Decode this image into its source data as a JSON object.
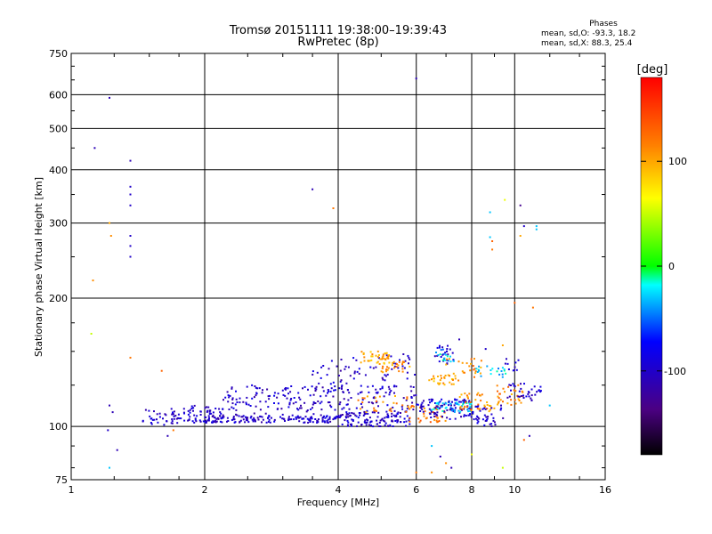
{
  "chart_data": {
    "type": "scatter",
    "title": "Tromsø 20151111 19:38:00–19:39:43",
    "subtitle": "RwPretec (8p)",
    "xlabel": "Frequency [MHz]",
    "ylabel": "Stationary phase Virtual Height [km]",
    "x_scale": "log",
    "y_scale": "log",
    "xlim": [
      1,
      16
    ],
    "ylim": [
      75,
      750
    ],
    "x_ticks": [
      1,
      2,
      4,
      6,
      8,
      10,
      16
    ],
    "y_ticks": [
      75,
      100,
      200,
      300,
      400,
      500,
      600,
      750
    ],
    "grid": true,
    "phase_stats": {
      "heading": "Phases",
      "line_o": "mean, sd,O: -93.3, 18.2",
      "line_x": "mean, sd,X: 88.3, 25.4"
    },
    "colorbar": {
      "label": "[deg]",
      "range": [
        -180,
        180
      ],
      "ticks": [
        100,
        0,
        -100
      ]
    },
    "points": [
      [
        1.13,
        450,
        -110
      ],
      [
        1.22,
        590,
        -110
      ],
      [
        1.36,
        420,
        -110
      ],
      [
        1.36,
        365,
        -100
      ],
      [
        1.36,
        350,
        -100
      ],
      [
        1.36,
        330,
        -100
      ],
      [
        1.36,
        280,
        -100
      ],
      [
        1.36,
        265,
        -100
      ],
      [
        1.36,
        250,
        -100
      ],
      [
        1.22,
        300,
        100
      ],
      [
        1.23,
        280,
        110
      ],
      [
        1.12,
        220,
        110
      ],
      [
        1.11,
        165,
        50
      ],
      [
        1.36,
        145,
        120
      ],
      [
        1.22,
        112,
        -110
      ],
      [
        1.24,
        108,
        -110
      ],
      [
        1.21,
        98,
        -100
      ],
      [
        1.27,
        88,
        -110
      ],
      [
        1.22,
        80,
        -30
      ],
      [
        1.6,
        135,
        130
      ],
      [
        1.7,
        98,
        120
      ],
      [
        1.65,
        95,
        -110
      ],
      [
        3.5,
        360,
        -110
      ],
      [
        3.9,
        325,
        120
      ],
      [
        6.0,
        655,
        -110
      ],
      [
        8.8,
        318,
        -30
      ],
      [
        8.8,
        278,
        -30
      ],
      [
        8.9,
        272,
        130
      ],
      [
        8.9,
        260,
        120
      ],
      [
        9.5,
        340,
        60
      ],
      [
        10.3,
        330,
        -130
      ],
      [
        10.5,
        295,
        -100
      ],
      [
        11.2,
        295,
        -30
      ],
      [
        11.2,
        290,
        -30
      ],
      [
        10.3,
        280,
        100
      ],
      [
        10.0,
        195,
        130
      ],
      [
        11.0,
        190,
        120
      ],
      [
        8.6,
        152,
        -100
      ],
      [
        7.5,
        160,
        -110
      ],
      [
        9.4,
        155,
        100
      ],
      [
        10.5,
        93,
        130
      ],
      [
        10.8,
        95,
        -110
      ],
      [
        12.0,
        112,
        -30
      ],
      [
        9.4,
        80,
        50
      ],
      [
        6.0,
        78,
        120
      ],
      [
        6.5,
        78,
        110
      ],
      [
        7.2,
        80,
        -110
      ],
      [
        7.0,
        82,
        110
      ],
      [
        6.8,
        85,
        -110
      ],
      [
        6.5,
        90,
        -30
      ],
      [
        8.0,
        86,
        60
      ]
    ],
    "clusters": [
      {
        "f": [
          1.45,
          1.75
        ],
        "h": [
          100,
          110
        ],
        "phase": -100,
        "n": 40
      },
      {
        "f": [
          1.75,
          2.2
        ],
        "h": [
          102,
          112
        ],
        "phase": -100,
        "n": 60
      },
      {
        "f": [
          2.0,
          4.0
        ],
        "h": [
          102,
          106
        ],
        "phase": -100,
        "n": 150
      },
      {
        "f": [
          2.2,
          4.0
        ],
        "h": [
          106,
          125
        ],
        "phase": -100,
        "n": 130
      },
      {
        "f": [
          3.5,
          4.2
        ],
        "h": [
          120,
          145
        ],
        "phase": -100,
        "n": 30
      },
      {
        "f": [
          4.0,
          5.8
        ],
        "h": [
          100,
          108
        ],
        "phase": -100,
        "n": 120
      },
      {
        "f": [
          4.0,
          6.0
        ],
        "h": [
          108,
          125
        ],
        "phase": -100,
        "n": 80
      },
      {
        "f": [
          4.2,
          6.0
        ],
        "h": [
          128,
          148
        ],
        "phase": -100,
        "n": 40
      },
      {
        "f": [
          4.5,
          5.3
        ],
        "h": [
          140,
          150
        ],
        "phase": 100,
        "n": 40
      },
      {
        "f": [
          5.0,
          5.8
        ],
        "h": [
          134,
          142
        ],
        "phase": 110,
        "n": 25
      },
      {
        "f": [
          4.4,
          5.8
        ],
        "h": [
          108,
          118
        ],
        "phase": 110,
        "n": 25
      },
      {
        "f": [
          5.7,
          7.0
        ],
        "h": [
          102,
          112
        ],
        "phase": 120,
        "n": 40
      },
      {
        "f": [
          6.0,
          8.0
        ],
        "h": [
          104,
          116
        ],
        "phase": -100,
        "n": 100
      },
      {
        "f": [
          6.5,
          8.0
        ],
        "h": [
          108,
          114
        ],
        "phase": -30,
        "n": 40
      },
      {
        "f": [
          6.6,
          7.3
        ],
        "h": [
          140,
          155
        ],
        "phase": -100,
        "n": 25
      },
      {
        "f": [
          6.6,
          7.4
        ],
        "h": [
          142,
          152
        ],
        "phase": -30,
        "n": 15
      },
      {
        "f": [
          6.4,
          7.5
        ],
        "h": [
          125,
          132
        ],
        "phase": 100,
        "n": 30
      },
      {
        "f": [
          7.0,
          8.5
        ],
        "h": [
          130,
          145
        ],
        "phase": 110,
        "n": 25
      },
      {
        "f": [
          7.5,
          9.0
        ],
        "h": [
          108,
          120
        ],
        "phase": 110,
        "n": 40
      },
      {
        "f": [
          8.0,
          9.5
        ],
        "h": [
          100,
          112
        ],
        "phase": -100,
        "n": 40
      },
      {
        "f": [
          8.2,
          9.6
        ],
        "h": [
          130,
          140
        ],
        "phase": -30,
        "n": 20
      },
      {
        "f": [
          9.0,
          10.5
        ],
        "h": [
          112,
          125
        ],
        "phase": 110,
        "n": 30
      },
      {
        "f": [
          9.5,
          11.5
        ],
        "h": [
          115,
          126
        ],
        "phase": -100,
        "n": 35
      },
      {
        "f": [
          9.5,
          10.2
        ],
        "h": [
          135,
          145
        ],
        "phase": -100,
        "n": 10
      }
    ]
  }
}
